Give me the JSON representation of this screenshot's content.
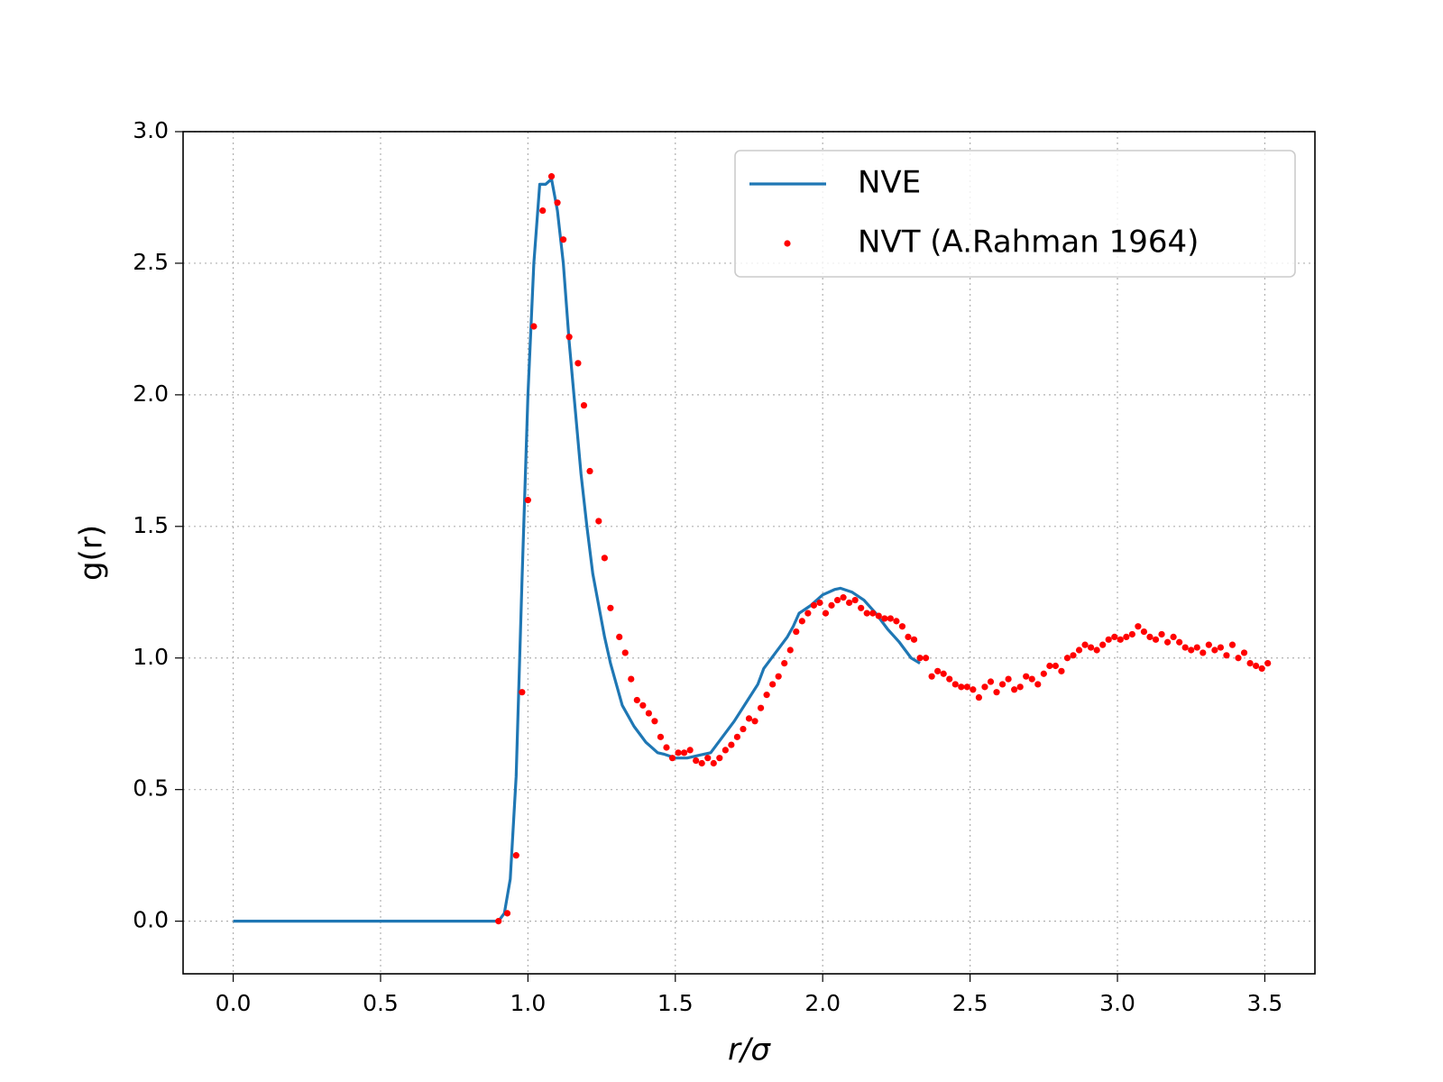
{
  "chart_data": {
    "type": "line",
    "xlabel": "r/σ",
    "ylabel": "g(r)",
    "xlim": [
      -0.17,
      3.67
    ],
    "ylim": [
      -0.2,
      3.0
    ],
    "xticks": [
      {
        "value": 0,
        "label": "0.0"
      },
      {
        "value": 0.5,
        "label": "0.5"
      },
      {
        "value": 1,
        "label": "1.0"
      },
      {
        "value": 1.5,
        "label": "1.5"
      },
      {
        "value": 2,
        "label": "2.0"
      },
      {
        "value": 2.5,
        "label": "2.5"
      },
      {
        "value": 3,
        "label": "3.0"
      },
      {
        "value": 3.5,
        "label": "3.5"
      }
    ],
    "yticks": [
      {
        "value": 0,
        "label": "0.0"
      },
      {
        "value": 0.5,
        "label": "0.5"
      },
      {
        "value": 1,
        "label": "1.0"
      },
      {
        "value": 1.5,
        "label": "1.5"
      },
      {
        "value": 2,
        "label": "2.0"
      },
      {
        "value": 2.5,
        "label": "2.5"
      },
      {
        "value": 3,
        "label": "3.0"
      }
    ],
    "grid": true,
    "legend": "upper right",
    "series": [
      {
        "name": "NVE",
        "type": "line",
        "color": "#1f77b4",
        "x": [
          0,
          0.88,
          0.9,
          0.92,
          0.94,
          0.96,
          0.98,
          1.0,
          1.02,
          1.04,
          1.06,
          1.08,
          1.1,
          1.12,
          1.14,
          1.16,
          1.18,
          1.2,
          1.22,
          1.24,
          1.26,
          1.28,
          1.3,
          1.32,
          1.34,
          1.36,
          1.38,
          1.4,
          1.42,
          1.44,
          1.46,
          1.5,
          1.54,
          1.58,
          1.62,
          1.66,
          1.7,
          1.74,
          1.78,
          1.8,
          1.84,
          1.88,
          1.9,
          1.92,
          1.96,
          2.0,
          2.02,
          2.04,
          2.06,
          2.1,
          2.14,
          2.18,
          2.22,
          2.26,
          2.3,
          2.33
        ],
        "values": [
          0,
          0,
          0.0,
          0.03,
          0.16,
          0.55,
          1.3,
          2.0,
          2.5,
          2.8,
          2.8,
          2.82,
          2.7,
          2.5,
          2.2,
          1.95,
          1.7,
          1.5,
          1.32,
          1.2,
          1.08,
          0.98,
          0.9,
          0.82,
          0.78,
          0.74,
          0.71,
          0.68,
          0.66,
          0.64,
          0.635,
          0.62,
          0.62,
          0.63,
          0.64,
          0.7,
          0.76,
          0.83,
          0.9,
          0.96,
          1.02,
          1.08,
          1.12,
          1.17,
          1.2,
          1.24,
          1.25,
          1.26,
          1.265,
          1.25,
          1.22,
          1.17,
          1.11,
          1.06,
          1.0,
          0.98
        ]
      },
      {
        "name": "NVT (A.Rahman 1964)",
        "type": "scatter",
        "color": "#ff0000",
        "x": [
          0.9,
          0.93,
          0.96,
          0.98,
          1.0,
          1.02,
          1.05,
          1.08,
          1.1,
          1.12,
          1.14,
          1.17,
          1.19,
          1.21,
          1.24,
          1.26,
          1.28,
          1.31,
          1.33,
          1.35,
          1.37,
          1.39,
          1.41,
          1.43,
          1.45,
          1.47,
          1.49,
          1.51,
          1.53,
          1.55,
          1.57,
          1.59,
          1.61,
          1.63,
          1.65,
          1.67,
          1.69,
          1.71,
          1.73,
          1.75,
          1.77,
          1.79,
          1.81,
          1.83,
          1.85,
          1.87,
          1.89,
          1.91,
          1.93,
          1.95,
          1.97,
          1.99,
          2.01,
          2.03,
          2.05,
          2.07,
          2.09,
          2.11,
          2.13,
          2.15,
          2.17,
          2.19,
          2.21,
          2.23,
          2.25,
          2.27,
          2.29,
          2.31,
          2.33,
          2.35,
          2.37,
          2.39,
          2.41,
          2.43,
          2.45,
          2.47,
          2.49,
          2.51,
          2.53,
          2.55,
          2.57,
          2.59,
          2.61,
          2.63,
          2.65,
          2.67,
          2.69,
          2.71,
          2.73,
          2.75,
          2.77,
          2.79,
          2.81,
          2.83,
          2.85,
          2.87,
          2.89,
          2.91,
          2.93,
          2.95,
          2.97,
          2.99,
          3.01,
          3.03,
          3.05,
          3.07,
          3.09,
          3.11,
          3.13,
          3.15,
          3.17,
          3.19,
          3.21,
          3.23,
          3.25,
          3.27,
          3.29,
          3.31,
          3.33,
          3.35,
          3.37,
          3.39,
          3.41,
          3.43,
          3.45,
          3.47,
          3.49,
          3.51
        ],
        "values": [
          0.0,
          0.03,
          0.25,
          0.87,
          1.6,
          2.26,
          2.7,
          2.83,
          2.73,
          2.59,
          2.22,
          2.12,
          1.96,
          1.71,
          1.52,
          1.38,
          1.19,
          1.08,
          1.02,
          0.92,
          0.84,
          0.82,
          0.79,
          0.76,
          0.7,
          0.66,
          0.62,
          0.64,
          0.64,
          0.65,
          0.61,
          0.6,
          0.62,
          0.6,
          0.62,
          0.65,
          0.67,
          0.7,
          0.73,
          0.77,
          0.76,
          0.81,
          0.86,
          0.9,
          0.93,
          0.98,
          1.03,
          1.1,
          1.14,
          1.17,
          1.2,
          1.21,
          1.17,
          1.2,
          1.22,
          1.23,
          1.21,
          1.22,
          1.19,
          1.17,
          1.17,
          1.16,
          1.15,
          1.15,
          1.14,
          1.12,
          1.08,
          1.07,
          1.0,
          1.0,
          0.93,
          0.95,
          0.94,
          0.92,
          0.9,
          0.89,
          0.89,
          0.88,
          0.85,
          0.89,
          0.91,
          0.87,
          0.9,
          0.92,
          0.88,
          0.89,
          0.93,
          0.92,
          0.9,
          0.94,
          0.97,
          0.97,
          0.95,
          1.0,
          1.01,
          1.03,
          1.05,
          1.04,
          1.03,
          1.05,
          1.07,
          1.08,
          1.07,
          1.08,
          1.09,
          1.12,
          1.1,
          1.08,
          1.07,
          1.09,
          1.06,
          1.08,
          1.06,
          1.04,
          1.03,
          1.04,
          1.02,
          1.05,
          1.03,
          1.04,
          1.01,
          1.05,
          1.0,
          1.02,
          0.98,
          0.97,
          0.96,
          0.98
        ]
      }
    ]
  }
}
